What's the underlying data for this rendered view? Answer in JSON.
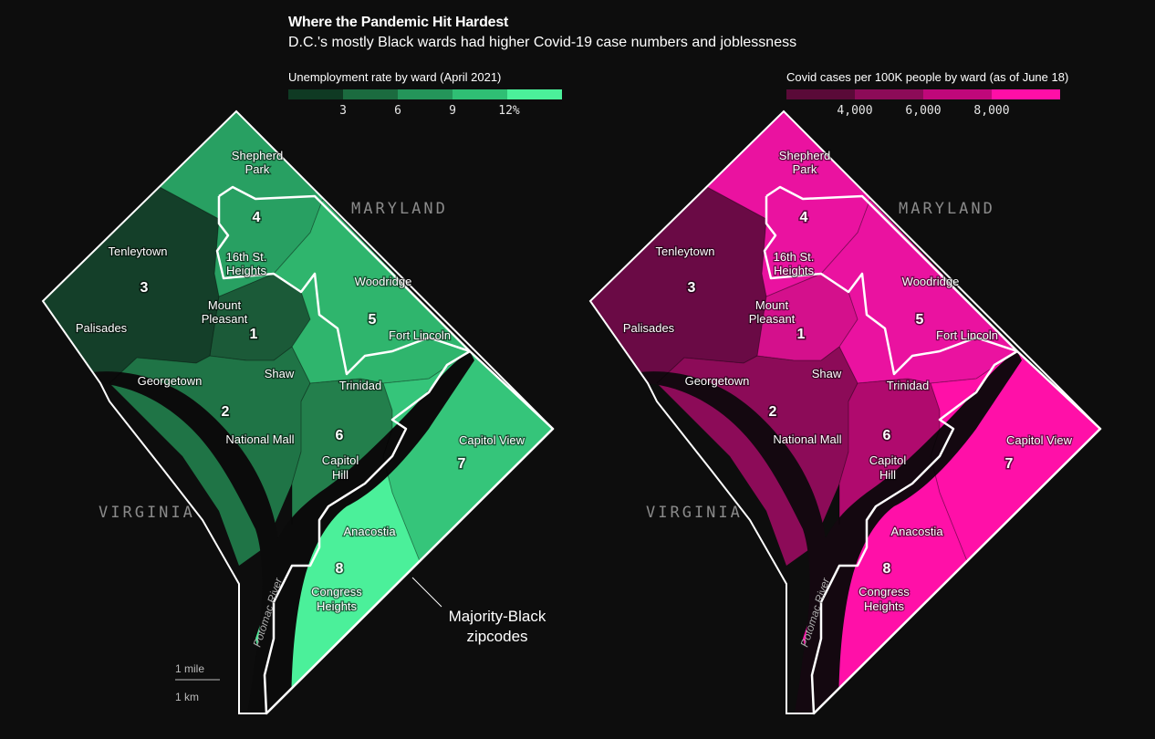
{
  "header": {
    "title": "Where the Pandemic Hit Hardest",
    "subtitle": "D.C.'s mostly Black wards had higher Covid-19 case numbers and joblessness"
  },
  "legend_left": {
    "title": "Unemployment rate by ward (April 2021)",
    "ticks": [
      "3",
      "6",
      "9",
      "12%"
    ],
    "colors": [
      "#0f3a23",
      "#1b6b3f",
      "#24955a",
      "#2fbf74",
      "#4bf09a"
    ]
  },
  "legend_right": {
    "title": "Covid cases per 100K people by ward (as of June 18)",
    "ticks": [
      "4,000",
      "6,000",
      "8,000"
    ],
    "colors": [
      "#5a0a38",
      "#8c0b58",
      "#c0087a",
      "#ff0fa6"
    ]
  },
  "labels": {
    "maryland": "MARYLAND",
    "virginia": "VIRGINIA",
    "potomac": "Potomac River",
    "annotation_line1": "Majority-Black",
    "annotation_line2": "zipcodes",
    "scale_mile": "1 mile",
    "scale_km": "1 km",
    "neighborhoods": {
      "shepherd1": "Shepherd",
      "shepherd2": "Park",
      "tenleytown": "Tenleytown",
      "sixteenth1": "16th St.",
      "sixteenth2": "Heights",
      "woodridge": "Woodridge",
      "mount1": "Mount",
      "mount2": "Pleasant",
      "palisades": "Palisades",
      "fortlincoln": "Fort Lincoln",
      "shaw": "Shaw",
      "georgetown": "Georgetown",
      "trinidad": "Trinidad",
      "nationalmall": "National Mall",
      "capitolview": "Capitol View",
      "capitol1": "Capitol",
      "capitol2": "Hill",
      "anacostia": "Anacostia",
      "congress1": "Congress",
      "congress2": "Heights"
    },
    "wards": {
      "w1": "1",
      "w2": "2",
      "w3": "3",
      "w4": "4",
      "w5": "5",
      "w6": "6",
      "w7": "7",
      "w8": "8"
    }
  },
  "map_data": {
    "unemployment_color_by_ward": {
      "1": "#1b5a38",
      "2": "#1f7446",
      "3": "#143f29",
      "4": "#28a062",
      "5": "#2fb56d",
      "6": "#237f4c",
      "7": "#35c57a",
      "8": "#4bf09a"
    },
    "covid_color_by_ward": {
      "1": "#d4108c",
      "2": "#8c0b58",
      "3": "#6a0a45",
      "4": "#ea12a0",
      "5": "#ea12a0",
      "6": "#b00a6e",
      "7": "#ff10a8",
      "8": "#ff10a8"
    }
  }
}
